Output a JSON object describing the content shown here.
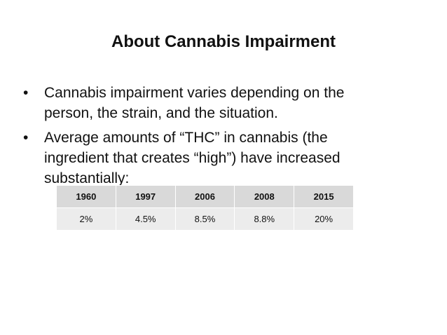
{
  "slide": {
    "title": "About Cannabis Impairment",
    "bullets": [
      "Cannabis impairment varies depending on the person, the strain, and the situation.",
      "Average amounts of “THC” in cannabis (the ingredient that creates “high”) have increased substantially:"
    ],
    "table": {
      "headers": [
        "1960",
        "1997",
        "2006",
        "2008",
        "2015"
      ],
      "values": [
        "2%",
        "4.5%",
        "8.5%",
        "8.8%",
        "20%"
      ]
    }
  },
  "colors": {
    "header_fill": "#d9d9d9",
    "cell_fill": "#ececec",
    "text": "#111111"
  }
}
